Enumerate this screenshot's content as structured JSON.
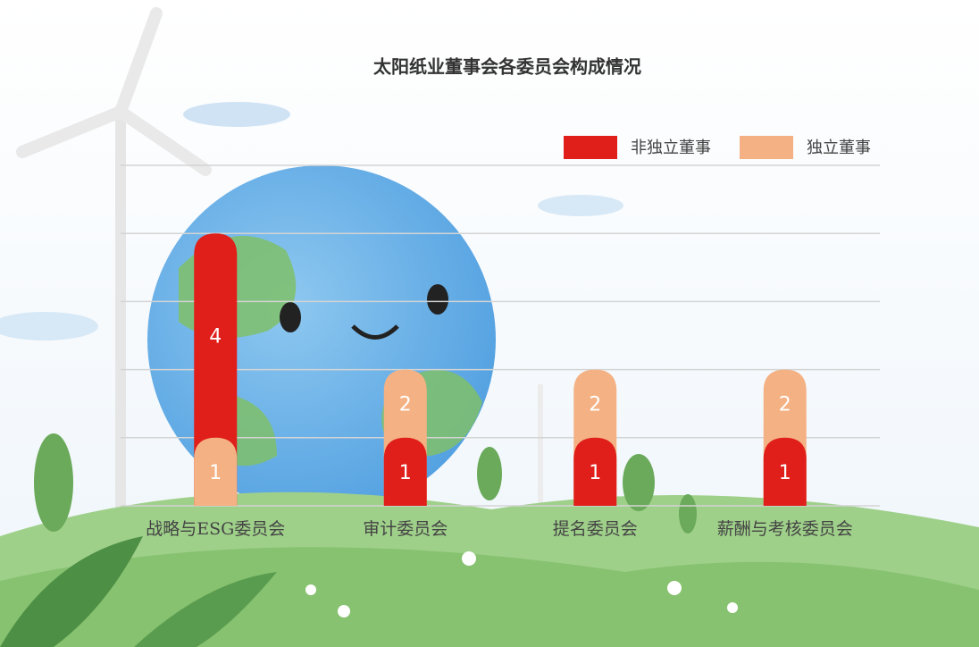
{
  "chart_data": {
    "type": "bar",
    "title": "太阳纸业董事会各委员会构成情况",
    "categories": [
      "战略与ESG委员会",
      "审计委员会",
      "提名委员会",
      "薪酬与考核委员会"
    ],
    "series": [
      {
        "name": "非独立董事",
        "color": "#e01e1a",
        "values": [
          4,
          1,
          1,
          1
        ]
      },
      {
        "name": "独立董事",
        "color": "#f4b183",
        "values": [
          1,
          2,
          2,
          2
        ]
      }
    ],
    "ylim": [
      0,
      5
    ],
    "yticks": [
      0,
      1,
      2,
      3,
      4,
      5
    ],
    "ytick_labels": false,
    "grid": true,
    "bar_mode": "overlap",
    "legend": "top-right"
  }
}
